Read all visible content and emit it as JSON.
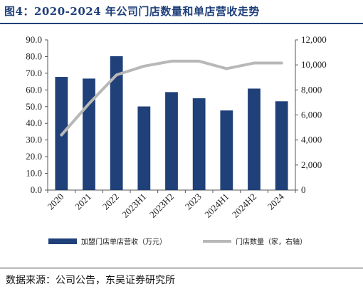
{
  "header": {
    "title": "图4：2020-2024 年公司门店数量和单店营收走势"
  },
  "footer": {
    "source": "数据来源：公司公告，东吴证券研究所"
  },
  "chart_data": {
    "type": "bar",
    "categories": [
      "2020",
      "2021",
      "2022",
      "2023H1",
      "2023H2",
      "2023",
      "2024H1",
      "2024H2",
      "2024"
    ],
    "series": [
      {
        "name": "加盟门店单店营收（万元）",
        "type": "bar",
        "axis": "left",
        "color": "#1f4079",
        "values": [
          67.8,
          66.8,
          80.2,
          50.1,
          58.7,
          55.0,
          47.7,
          60.8,
          53.2
        ]
      },
      {
        "name": "门店数量（家，右轴）",
        "type": "line",
        "axis": "right",
        "color": "#b8b8b8",
        "values": [
          4400,
          6900,
          9200,
          9900,
          10300,
          10300,
          9700,
          10150,
          10150
        ]
      }
    ],
    "left_axis": {
      "min": 0,
      "max": 90,
      "ticks": [
        "0.0",
        "10.0",
        "20.0",
        "30.0",
        "40.0",
        "50.0",
        "60.0",
        "70.0",
        "80.0",
        "90.0"
      ]
    },
    "right_axis": {
      "min": 0,
      "max": 12000,
      "ticks": [
        "0",
        "2,000",
        "4,000",
        "6,000",
        "8,000",
        "10,000",
        "12,000"
      ]
    },
    "legend_position": "bottom",
    "grid": false
  }
}
